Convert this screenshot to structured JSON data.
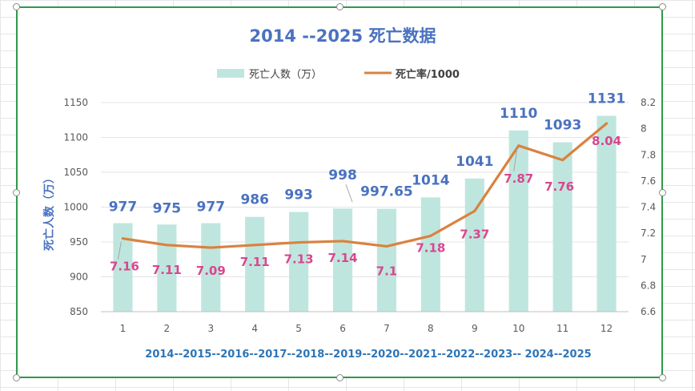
{
  "chart_data": {
    "type": "bar-line",
    "title": "2014 --2025  死亡数据",
    "categories": [
      "1",
      "2",
      "3",
      "4",
      "5",
      "6",
      "7",
      "8",
      "9",
      "10",
      "11",
      "12"
    ],
    "x_period_label": "2014--2015--2016--2017--2018--2019--2020--2021--2022--2023-- 2024--2025",
    "ylabel": "死亡人数（万）",
    "y_left": {
      "min": 850,
      "max": 1150,
      "ticks": [
        "1150",
        "1100",
        "1050",
        "1000",
        "950",
        "900",
        "850"
      ]
    },
    "y_right": {
      "min": 6.6,
      "max": 8.2,
      "ticks": [
        "8.2",
        "8",
        "7.8",
        "7.6",
        "7.4",
        "7.2",
        "7",
        "6.8",
        "6.6"
      ]
    },
    "series": [
      {
        "name": "死亡人数（万）",
        "kind": "bar",
        "axis": "left",
        "values": [
          977,
          975,
          977,
          986,
          993,
          998,
          997.65,
          1014,
          1041,
          1110,
          1093,
          1131
        ],
        "labels": [
          "977",
          "975",
          "977",
          "986",
          "993",
          "998",
          "997.65",
          "1014",
          "1041",
          "1110",
          "1093",
          "1131"
        ]
      },
      {
        "name": "死亡率/1000",
        "kind": "line",
        "axis": "right",
        "values": [
          7.16,
          7.11,
          7.09,
          7.11,
          7.13,
          7.14,
          7.1,
          7.18,
          7.37,
          7.87,
          7.76,
          8.04
        ],
        "labels": [
          "7.16",
          "7.11",
          "7.09",
          "7.11",
          "7.13",
          "7.14",
          "7.1",
          "7.18",
          "7.37",
          "7.87",
          "7.76",
          "8.04"
        ]
      }
    ],
    "legend_position": "top-center",
    "grid": true,
    "colors": {
      "bar": "#bfe6de",
      "line": "#d9823f",
      "bar_label": "#4a72c0",
      "line_label": "#d9468f",
      "title": "#4a72c0",
      "axis_text": "#595959",
      "period_label": "#2e75b6"
    }
  }
}
